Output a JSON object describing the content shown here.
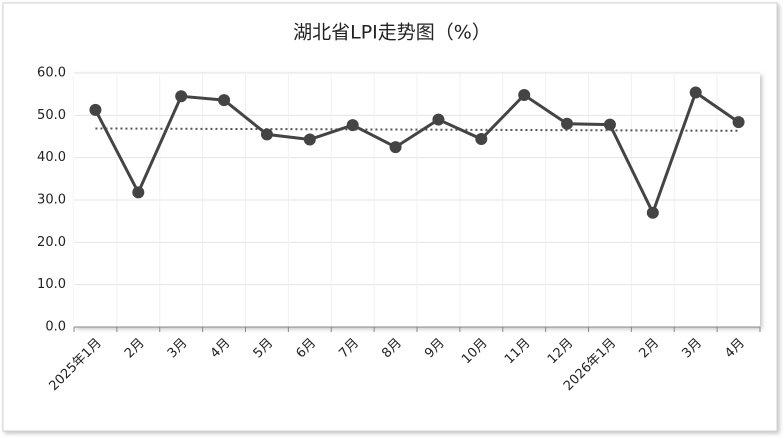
{
  "chart_data": {
    "type": "line",
    "title": "湖北省LPI走势图（%）",
    "categories": [
      "2025年1月",
      "2月",
      "3月",
      "4月",
      "5月",
      "6月",
      "7月",
      "8月",
      "9月",
      "10月",
      "11月",
      "12月",
      "2026年1月",
      "2月",
      "3月",
      "4月"
    ],
    "values": [
      51.3,
      31.8,
      54.5,
      53.6,
      45.5,
      44.3,
      47.7,
      42.5,
      49.0,
      44.4,
      54.8,
      48.0,
      47.8,
      27.0,
      55.4,
      48.4
    ],
    "color": "#444444",
    "trendline": true,
    "ylim": [
      0,
      60
    ],
    "yticks": [
      {
        "value": 0,
        "label": "0.0"
      },
      {
        "value": 10,
        "label": "10.0"
      },
      {
        "value": 20,
        "label": "20.0"
      },
      {
        "value": 30,
        "label": "30.0"
      },
      {
        "value": 40,
        "label": "40.0"
      },
      {
        "value": 50,
        "label": "50.0"
      },
      {
        "value": 60,
        "label": "60.0"
      }
    ],
    "grid": true
  }
}
